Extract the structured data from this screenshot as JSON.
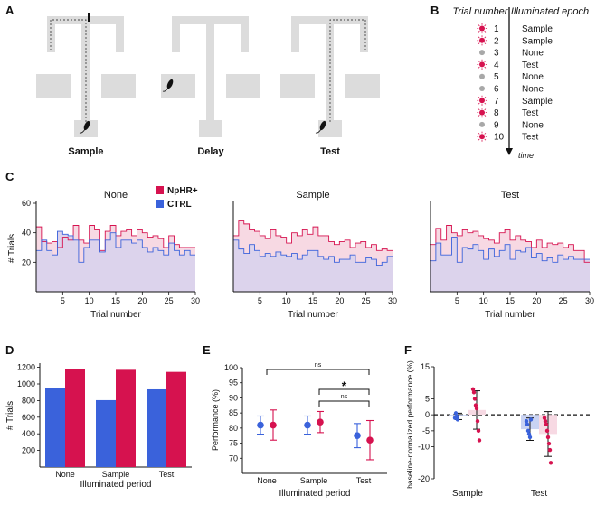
{
  "panels": {
    "A": {
      "label": "A",
      "captions": [
        "Sample",
        "Delay",
        "Test"
      ]
    },
    "B": {
      "label": "B",
      "col_trial": "Trial number",
      "col_epoch": "Illuminated epoch",
      "time_label": "time",
      "rows": [
        {
          "trial": "1",
          "epoch": "Sample",
          "lit": true
        },
        {
          "trial": "2",
          "epoch": "Sample",
          "lit": true
        },
        {
          "trial": "3",
          "epoch": "None",
          "lit": false
        },
        {
          "trial": "4",
          "epoch": "Test",
          "lit": true
        },
        {
          "trial": "5",
          "epoch": "None",
          "lit": false
        },
        {
          "trial": "6",
          "epoch": "None",
          "lit": false
        },
        {
          "trial": "7",
          "epoch": "Sample",
          "lit": true
        },
        {
          "trial": "8",
          "epoch": "Test",
          "lit": true
        },
        {
          "trial": "9",
          "epoch": "None",
          "lit": false
        },
        {
          "trial": "10",
          "epoch": "Test",
          "lit": true
        }
      ]
    },
    "C": {
      "label": "C"
    },
    "D": {
      "label": "D"
    },
    "E": {
      "label": "E"
    },
    "F": {
      "label": "F"
    }
  },
  "colors": {
    "npHR": "#d6124f",
    "ctrl": "#3a62db",
    "npHR_fill": "#f7d9e3",
    "ctrl_fill": "#dcd3ec",
    "maze": "#dcdcdc",
    "path": "#444444"
  },
  "chart_data": [
    {
      "id": "C",
      "type": "area",
      "ylabel": "# Trials",
      "xlabel": "Trial number",
      "legend": [
        "NpHR+",
        "CTRL"
      ],
      "legend_position": "top-left",
      "ylim": [
        0,
        60
      ],
      "xlim": [
        0,
        30
      ],
      "yticks": [
        20,
        40,
        60
      ],
      "xticks": [
        5,
        10,
        15,
        20,
        25,
        30
      ],
      "subplots": [
        {
          "title": "None",
          "npHR": [
            44,
            34,
            33,
            34,
            30,
            37,
            35,
            45,
            35,
            33,
            45,
            42,
            28,
            41,
            45,
            38,
            41,
            42,
            38,
            42,
            40,
            37,
            38,
            36,
            30,
            38,
            32,
            30,
            30,
            30
          ],
          "ctrl": [
            28,
            35,
            28,
            25,
            41,
            39,
            38,
            35,
            20,
            30,
            35,
            35,
            27,
            35,
            40,
            30,
            35,
            35,
            33,
            35,
            30,
            27,
            30,
            28,
            25,
            33,
            28,
            25,
            28,
            25
          ]
        },
        {
          "title": "Sample",
          "npHR": [
            38,
            48,
            46,
            42,
            41,
            38,
            36,
            42,
            38,
            37,
            33,
            40,
            38,
            42,
            39,
            44,
            38,
            38,
            34,
            32,
            34,
            35,
            30,
            33,
            34,
            30,
            32,
            28,
            29,
            28
          ],
          "ctrl": [
            35,
            29,
            26,
            32,
            28,
            24,
            26,
            24,
            27,
            25,
            24,
            26,
            22,
            25,
            28,
            28,
            24,
            22,
            24,
            20,
            22,
            22,
            25,
            20,
            20,
            23,
            22,
            18,
            20,
            24
          ]
        },
        {
          "title": "Test",
          "npHR": [
            32,
            43,
            35,
            45,
            40,
            38,
            42,
            40,
            41,
            38,
            36,
            35,
            33,
            40,
            42,
            35,
            38,
            35,
            34,
            30,
            35,
            30,
            33,
            32,
            33,
            30,
            32,
            28,
            28,
            20
          ],
          "ctrl": [
            21,
            33,
            25,
            25,
            37,
            20,
            30,
            29,
            32,
            28,
            22,
            29,
            24,
            28,
            32,
            22,
            28,
            27,
            30,
            23,
            26,
            21,
            23,
            20,
            25,
            22,
            24,
            22,
            22,
            22
          ]
        }
      ]
    },
    {
      "id": "D",
      "type": "bar",
      "ylabel": "# Trials",
      "xlabel": "Illuminated period",
      "categories": [
        "None",
        "Sample",
        "Test"
      ],
      "ylim": [
        0,
        1250
      ],
      "yticks": [
        200,
        400,
        600,
        800,
        1000,
        1200
      ],
      "series": [
        {
          "name": "CTRL",
          "values": [
            950,
            805,
            935
          ]
        },
        {
          "name": "NpHR+",
          "values": [
            1175,
            1170,
            1145
          ]
        }
      ]
    },
    {
      "id": "E",
      "type": "scatter",
      "ylabel": "Performance (%)",
      "xlabel": "Illuminated period",
      "categories": [
        "None",
        "Sample",
        "Test"
      ],
      "ylim": [
        65,
        100
      ],
      "yticks": [
        70,
        75,
        80,
        85,
        90,
        95,
        100
      ],
      "series": [
        {
          "name": "CTRL",
          "means": [
            81,
            81,
            77.5
          ],
          "err": [
            3,
            3,
            4
          ]
        },
        {
          "name": "NpHR+",
          "means": [
            81,
            82,
            76
          ],
          "err": [
            5,
            3.5,
            6.5
          ]
        }
      ],
      "brackets": [
        {
          "from": "None",
          "to": "Test",
          "label": "ns"
        },
        {
          "from": "Sample",
          "to": "Test",
          "label": "ns"
        },
        {
          "from": "Sample",
          "to": "Test",
          "label": "*"
        }
      ]
    },
    {
      "id": "F",
      "type": "bar",
      "ylabel": "baseline-normalized performance (%)",
      "categories": [
        "Sample",
        "Test"
      ],
      "ylim": [
        -20,
        15
      ],
      "yticks": [
        -20,
        -10,
        -5,
        0,
        5,
        15
      ],
      "series": [
        {
          "name": "CTRL",
          "values": [
            -0.5,
            -4.5
          ],
          "err": [
            1,
            3.5
          ],
          "points": [
            [
              -1,
              0.5,
              -0.5,
              -1.5
            ],
            [
              -2,
              -3,
              -5,
              -6,
              -7,
              -1.5
            ]
          ]
        },
        {
          "name": "NpHR+",
          "values": [
            1.5,
            -6
          ],
          "err": [
            6,
            7
          ],
          "points": [
            [
              8,
              7,
              5,
              3,
              2,
              -2,
              -5,
              -8
            ],
            [
              -1,
              -2,
              -3,
              -5,
              -7,
              -9,
              -11,
              -15
            ]
          ]
        }
      ]
    }
  ]
}
